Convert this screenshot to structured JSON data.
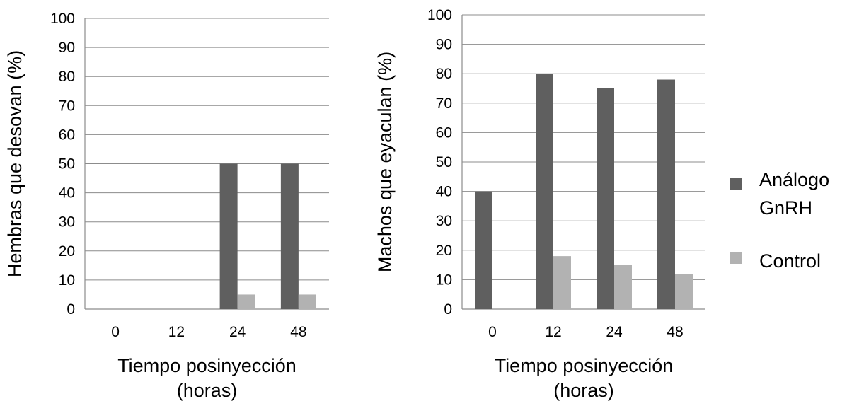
{
  "colors": {
    "analogo": "#5f5f5f",
    "control": "#b2b2b2",
    "grid": "#8c8c8c",
    "text": "#000000"
  },
  "legend": {
    "position": "right",
    "items": [
      {
        "label": "Análogo GnRH"
      },
      {
        "label": "Control"
      }
    ]
  },
  "chart_data": [
    {
      "type": "bar",
      "categories": [
        "0",
        "12",
        "24",
        "48"
      ],
      "series": [
        {
          "name": "Análogo GnRH",
          "values": [
            0,
            0,
            50,
            50
          ]
        },
        {
          "name": "Control",
          "values": [
            0,
            0,
            5,
            5
          ]
        }
      ],
      "xlabel": "Tiempo posinyección (horas)",
      "ylabel": "Hembras que desovan (%)",
      "ylim": [
        0,
        100
      ],
      "yticks": [
        "0",
        "10",
        "20",
        "30",
        "40",
        "50",
        "60",
        "70",
        "80",
        "90",
        "100"
      ],
      "grid": true
    },
    {
      "type": "bar",
      "categories": [
        "0",
        "12",
        "24",
        "48"
      ],
      "series": [
        {
          "name": "Análogo GnRH",
          "values": [
            40,
            80,
            75,
            78
          ]
        },
        {
          "name": "Control",
          "values": [
            0,
            18,
            15,
            12
          ]
        }
      ],
      "xlabel": "Tiempo posinyección (horas)",
      "ylabel": "Machos que eyaculan (%)",
      "ylim": [
        0,
        100
      ],
      "yticks": [
        "0",
        "10",
        "20",
        "30",
        "40",
        "50",
        "60",
        "70",
        "80",
        "90",
        "100"
      ],
      "grid": true
    }
  ]
}
